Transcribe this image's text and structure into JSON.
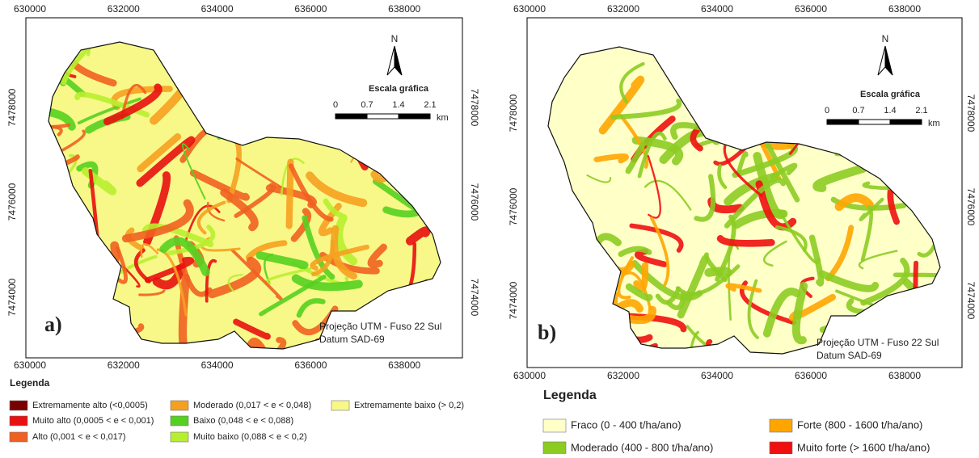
{
  "panels": [
    {
      "label": "a)",
      "x_ticks": [
        630000,
        632000,
        634000,
        636000,
        638000
      ],
      "y_ticks": [
        7478000,
        7476000,
        7474000
      ],
      "north": "N",
      "scale": {
        "title": "Escala gráfica",
        "ticks": [
          "0",
          "0.7",
          "1.4",
          "2.1"
        ],
        "unit": "km"
      },
      "projection": [
        "Projeção UTM - Fuso 22 Sul",
        "Datum SAD-69"
      ],
      "legend": {
        "title": "Legenda",
        "items": [
          {
            "label": "Extremamente alto (<0,0005)",
            "color": "#7a0000"
          },
          {
            "label": "Muito alto (0,0005 < e < 0,001)",
            "color": "#e81010"
          },
          {
            "label": "Alto (0,001 < e < 0,017)",
            "color": "#f06020"
          },
          {
            "label": "Moderado (0,017 < e < 0,048)",
            "color": "#f5a020"
          },
          {
            "label": "Baixo (0,048 < e < 0,088)",
            "color": "#55d020"
          },
          {
            "label": "Muito baixo (0,088 < e < 0,2)",
            "color": "#b8ee30"
          },
          {
            "label": "Extremamente baixo (> 0,2)",
            "color": "#f8f888"
          }
        ]
      }
    },
    {
      "label": "b)",
      "x_ticks": [
        630000,
        632000,
        634000,
        636000,
        638000
      ],
      "y_ticks": [
        7478000,
        7476000,
        7474000
      ],
      "north": "N",
      "scale": {
        "title": "Escala gráfica",
        "ticks": [
          "0",
          "0.7",
          "1.4",
          "2.1"
        ],
        "unit": "km"
      },
      "projection": [
        "Projeção UTM - Fuso 22 Sul",
        "Datum SAD-69"
      ],
      "legend": {
        "title": "Legenda",
        "items": [
          {
            "label": "Fraco (0 - 400 t/ha/ano)",
            "color": "#ffffc8"
          },
          {
            "label": "Moderado (400 - 800 t/ha/ano)",
            "color": "#8ccc22"
          },
          {
            "label": "Forte (800 - 1600 t/ha/ano)",
            "color": "#ffa500"
          },
          {
            "label": "Muito forte (> 1600 t/ha/ano)",
            "color": "#f01010"
          }
        ]
      }
    }
  ]
}
